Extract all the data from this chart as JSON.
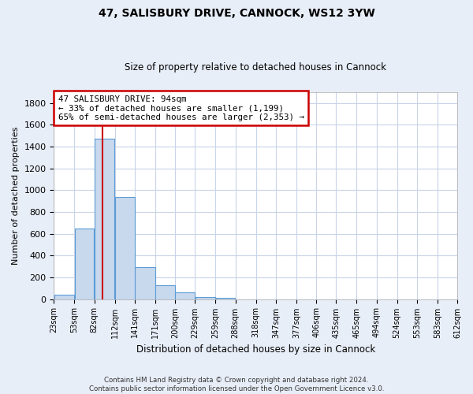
{
  "title": "47, SALISBURY DRIVE, CANNOCK, WS12 3YW",
  "subtitle": "Size of property relative to detached houses in Cannock",
  "xlabel": "Distribution of detached houses by size in Cannock",
  "ylabel": "Number of detached properties",
  "footer_line1": "Contains HM Land Registry data © Crown copyright and database right 2024.",
  "footer_line2": "Contains public sector information licensed under the Open Government Licence v3.0.",
  "bin_edges": [
    23,
    53,
    82,
    112,
    141,
    171,
    200,
    229,
    259,
    288,
    318,
    347,
    377,
    406,
    435,
    465,
    494,
    524,
    553,
    583,
    612
  ],
  "bar_heights": [
    40,
    650,
    1470,
    935,
    290,
    125,
    60,
    22,
    12,
    0,
    0,
    0,
    0,
    0,
    0,
    0,
    0,
    0,
    0,
    0
  ],
  "bar_color": "#c8d9ee",
  "bar_edge_color": "#5b9bd5",
  "grid_color": "#c8d4e8",
  "property_size": 94,
  "annotation_line1": "47 SALISBURY DRIVE: 94sqm",
  "annotation_line2": "← 33% of detached houses are smaller (1,199)",
  "annotation_line3": "65% of semi-detached houses are larger (2,353) →",
  "annotation_box_color": "#ffffff",
  "annotation_border_color": "#cc0000",
  "red_line_color": "#cc0000",
  "ylim": [
    0,
    1900
  ],
  "yticks": [
    0,
    200,
    400,
    600,
    800,
    1000,
    1200,
    1400,
    1600,
    1800
  ],
  "bg_color": "#e8eef8",
  "plot_bg_color": "#ffffff",
  "title_fontsize": 10,
  "subtitle_fontsize": 8.5
}
